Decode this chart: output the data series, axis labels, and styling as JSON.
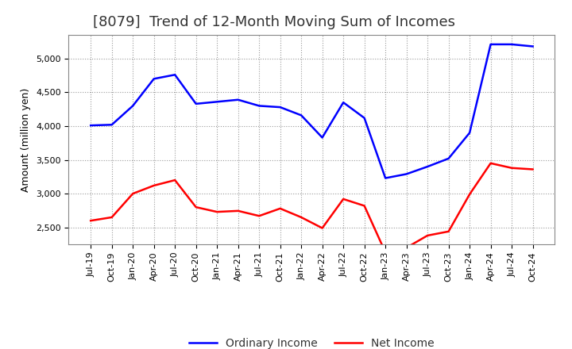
{
  "title": "[8079]  Trend of 12-Month Moving Sum of Incomes",
  "ylabel": "Amount (million yen)",
  "background_color": "#ffffff",
  "plot_background": "#ffffff",
  "grid_color": "#999999",
  "x_labels": [
    "Jul-19",
    "Oct-19",
    "Jan-20",
    "Apr-20",
    "Jul-20",
    "Oct-20",
    "Jan-21",
    "Apr-21",
    "Jul-21",
    "Oct-21",
    "Jan-22",
    "Apr-22",
    "Jul-22",
    "Oct-22",
    "Jan-23",
    "Apr-23",
    "Jul-23",
    "Oct-23",
    "Jan-24",
    "Apr-24",
    "Jul-24",
    "Oct-24"
  ],
  "ordinary_income": [
    4010,
    4020,
    4300,
    4700,
    4760,
    4330,
    4360,
    4390,
    4300,
    4280,
    4160,
    3830,
    4350,
    4120,
    3230,
    3290,
    3400,
    3520,
    3900,
    5210,
    5210,
    5180
  ],
  "net_income": [
    2600,
    2650,
    3000,
    3120,
    3200,
    2800,
    2730,
    2745,
    2670,
    2780,
    2650,
    2490,
    2920,
    2820,
    2130,
    2200,
    2380,
    2440,
    2990,
    3450,
    3380,
    3360
  ],
  "ordinary_color": "#0000ff",
  "net_color": "#ff0000",
  "ylim_min": 2250,
  "ylim_max": 5350,
  "yticks": [
    2500,
    3000,
    3500,
    4000,
    4500,
    5000
  ],
  "line_width": 1.8,
  "title_fontsize": 13,
  "axis_fontsize": 9,
  "tick_fontsize": 8,
  "legend_labels": [
    "Ordinary Income",
    "Net Income"
  ],
  "legend_fontsize": 10
}
